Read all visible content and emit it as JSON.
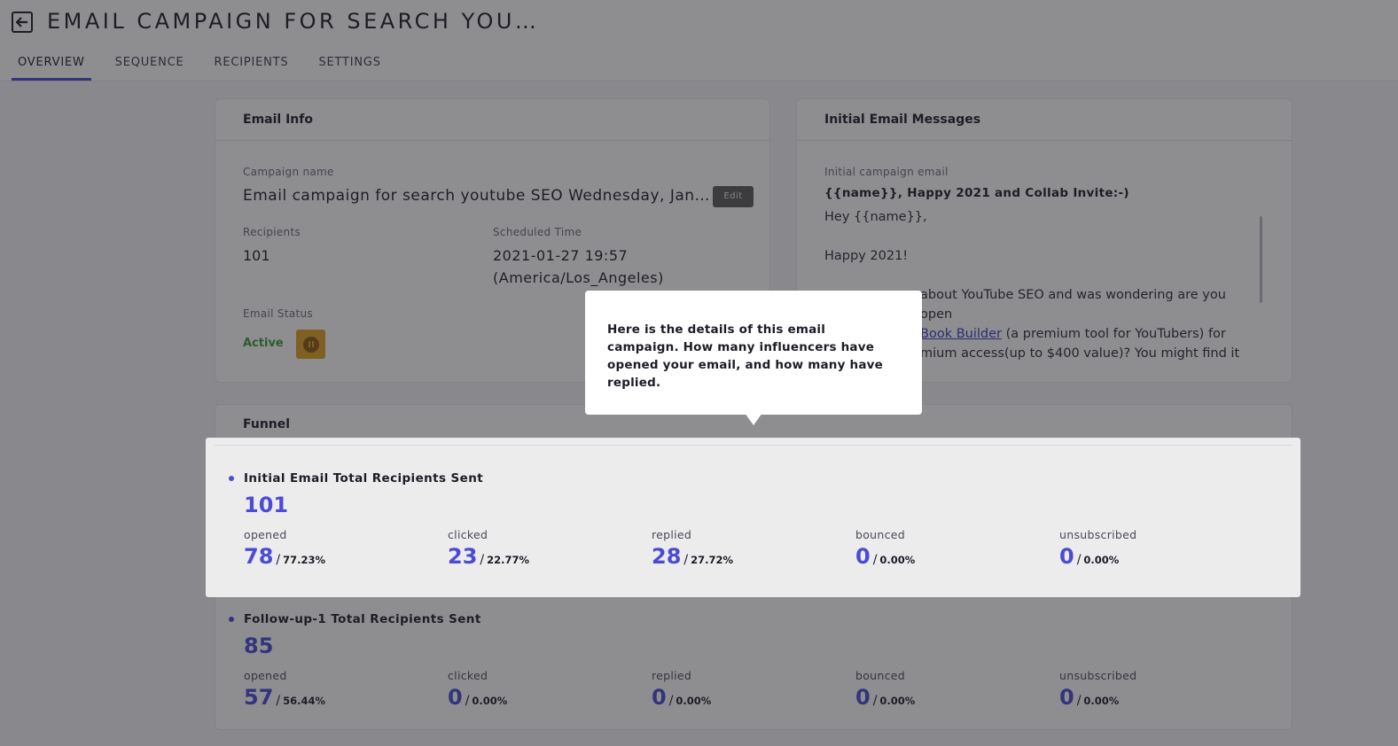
{
  "header": {
    "title": "EMAIL CAMPAIGN FOR SEARCH YOU…",
    "tabs": [
      "OVERVIEW",
      "SEQUENCE",
      "RECIPIENTS",
      "SETTINGS"
    ]
  },
  "email_info": {
    "heading": "Email Info",
    "campaign_name_label": "Campaign name",
    "campaign_name": "Email campaign for search youtube SEO Wednesday, Jan…",
    "edit_label": "Edit",
    "recipients_label": "Recipients",
    "recipients": "101",
    "scheduled_label": "Scheduled Time",
    "scheduled_time": "2021-01-27 19:57",
    "scheduled_tz": "(America/Los_Angeles)",
    "status_label": "Email Status",
    "status": "Active"
  },
  "initial_messages": {
    "heading": "Initial Email Messages",
    "email_label": "Initial campaign email",
    "subject": "{{name}}, Happy 2021 and Collab Invite:-)",
    "greeting": "Hey {{name}},",
    "line2": "Happy 2021!",
    "line3_start": "about YouTube SEO and was wondering are you open",
    "link_text": "Book Builder",
    "line4_rest": "(a premium tool for YouTubers) for",
    "line5": "mium access(up to $400 value)? You might find it"
  },
  "funnel": {
    "heading": "Funnel",
    "rows": [
      {
        "title": "Initial Email Total Recipients Sent",
        "total": "101",
        "stats": [
          {
            "label": "opened",
            "value": "78",
            "pct": "77.23%"
          },
          {
            "label": "clicked",
            "value": "23",
            "pct": "22.77%"
          },
          {
            "label": "replied",
            "value": "28",
            "pct": "27.72%"
          },
          {
            "label": "bounced",
            "value": "0",
            "pct": "0.00%"
          },
          {
            "label": "unsubscribed",
            "value": "0",
            "pct": "0.00%"
          }
        ]
      },
      {
        "title": "Follow-up-1 Total Recipients Sent",
        "total": "85",
        "stats": [
          {
            "label": "opened",
            "value": "57",
            "pct": "56.44%"
          },
          {
            "label": "clicked",
            "value": "0",
            "pct": "0.00%"
          },
          {
            "label": "replied",
            "value": "0",
            "pct": "0.00%"
          },
          {
            "label": "bounced",
            "value": "0",
            "pct": "0.00%"
          },
          {
            "label": "unsubscribed",
            "value": "0",
            "pct": "0.00%"
          }
        ]
      }
    ]
  },
  "tooltip": {
    "text": "Here is the details of this email campaign. How many influencers have opened your email, and how many have replied."
  },
  "colors": {
    "accent": "#4b4bd6",
    "status_active": "#3a9a3a",
    "pause": "#e0a020"
  }
}
